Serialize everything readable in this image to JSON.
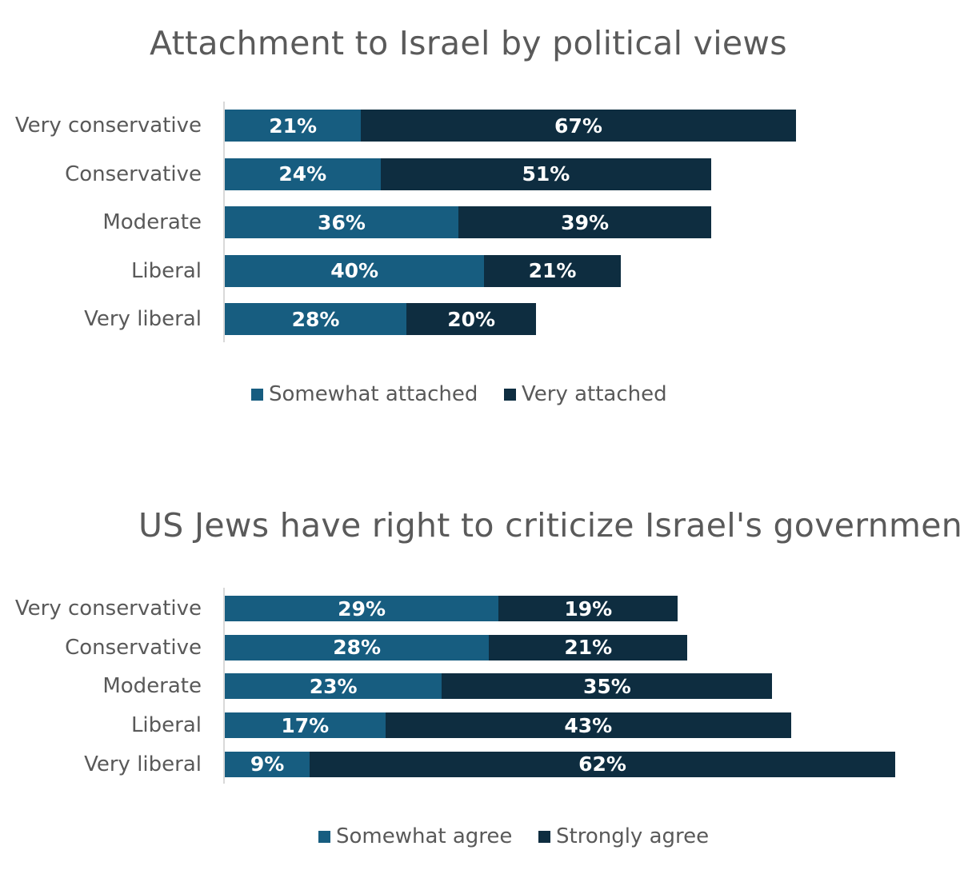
{
  "colors": {
    "somewhat": "#175d80",
    "very": "#0e2d40"
  },
  "chart_data": [
    {
      "type": "bar",
      "orientation": "horizontal",
      "stacked": true,
      "title": "Attachment to Israel by political views",
      "categories": [
        "Very conservative",
        "Conservative",
        "Moderate",
        "Liberal",
        "Very liberal"
      ],
      "series": [
        {
          "name": "Somewhat attached",
          "values": [
            21,
            24,
            36,
            40,
            28
          ]
        },
        {
          "name": "Very attached",
          "values": [
            67,
            51,
            39,
            21,
            20
          ]
        }
      ],
      "data_labels": true,
      "legend": "bottom",
      "grid": false
    },
    {
      "type": "bar",
      "orientation": "horizontal",
      "stacked": true,
      "title": "US Jews have right to criticize Israel's government",
      "categories": [
        "Very conservative",
        "Conservative",
        "Moderate",
        "Liberal",
        "Very liberal"
      ],
      "series": [
        {
          "name": "Somewhat agree",
          "values": [
            29,
            28,
            23,
            17,
            9
          ]
        },
        {
          "name": "Strongly agree",
          "values": [
            19,
            21,
            35,
            43,
            62
          ]
        }
      ],
      "data_labels": true,
      "legend": "bottom",
      "grid": false
    }
  ]
}
